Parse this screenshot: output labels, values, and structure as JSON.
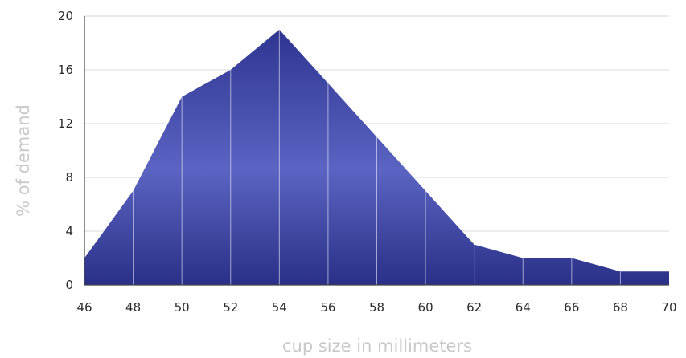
{
  "chart_data": {
    "type": "area",
    "x": [
      46,
      48,
      50,
      52,
      54,
      56,
      58,
      60,
      62,
      64,
      66,
      68,
      70
    ],
    "y": [
      2,
      7,
      14,
      16,
      19,
      15,
      11,
      7,
      3,
      2,
      2,
      1,
      1
    ],
    "xlabel": "cup size in millimeters",
    "ylabel": "% of demand",
    "xlim": [
      46,
      70
    ],
    "ylim": [
      0,
      20
    ],
    "xticks": [
      "46",
      "48",
      "50",
      "52",
      "54",
      "56",
      "58",
      "60",
      "62",
      "64",
      "66",
      "68",
      "70"
    ],
    "yticks": [
      "0",
      "4",
      "8",
      "12",
      "16",
      "20"
    ],
    "grid": true,
    "colors": {
      "fill_top": "#2e3591",
      "fill_mid": "#5b64c2",
      "fill_bottom": "#2a3088"
    }
  }
}
